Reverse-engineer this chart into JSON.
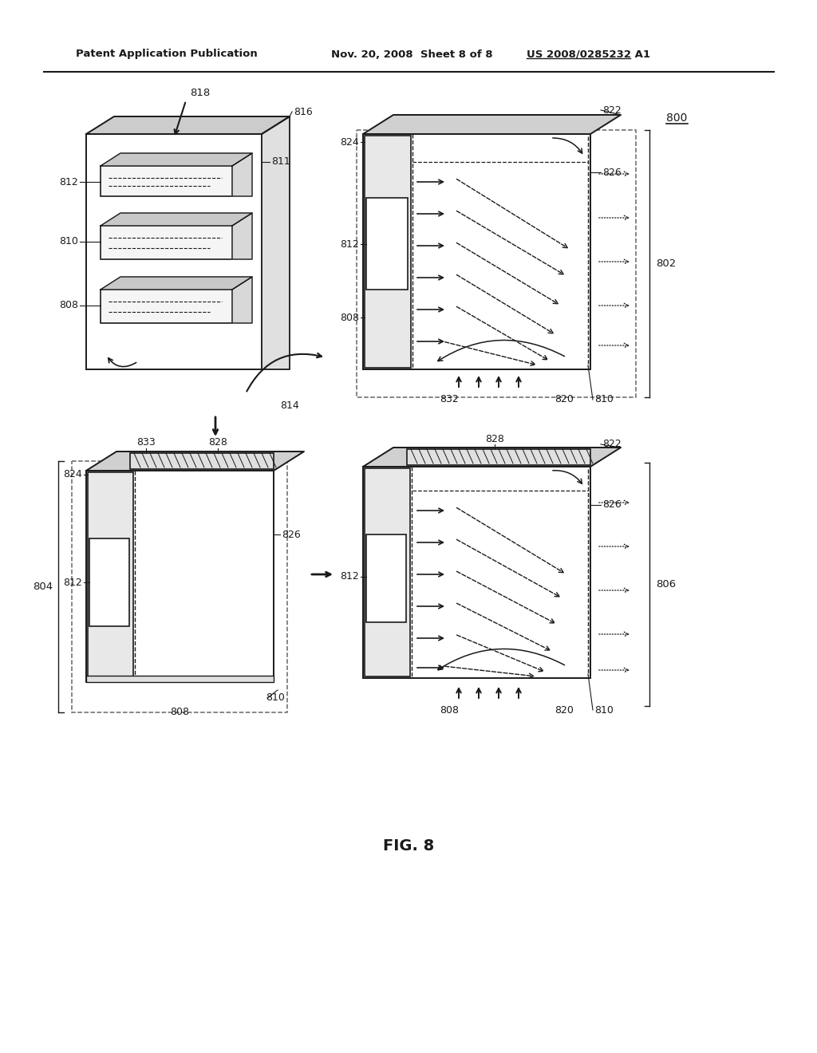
{
  "bg_color": "#ffffff",
  "line_color": "#1a1a1a",
  "header_left": "Patent Application Publication",
  "header_mid": "Nov. 20, 2008  Sheet 8 of 8",
  "header_right": "US 2008/0285232 A1",
  "figure_label": "FIG. 8",
  "ref_800": "800",
  "ref_802": "802",
  "ref_804": "804",
  "ref_806": "806",
  "ref_808": "808",
  "ref_810": "810",
  "ref_811": "811",
  "ref_812": "812",
  "ref_814": "814",
  "ref_816": "816",
  "ref_818": "818",
  "ref_820": "820",
  "ref_822": "822",
  "ref_824": "824",
  "ref_826": "826",
  "ref_828": "828",
  "ref_832": "832",
  "ref_833": "833"
}
